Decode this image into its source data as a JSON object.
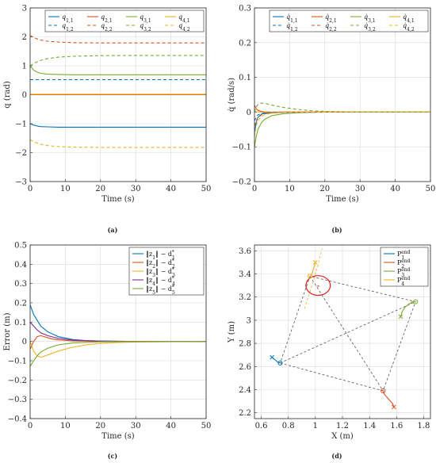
{
  "chart_data": [
    {
      "panel": "(a)",
      "type": "line",
      "xlabel": "Time (s)",
      "ylabel": "q (rad)",
      "xlim": [
        0,
        50
      ],
      "ylim": [
        -3,
        3
      ],
      "xticks": [
        0,
        10,
        20,
        30,
        40,
        50
      ],
      "yticks": [
        -3,
        -2,
        -1,
        0,
        1,
        2,
        3
      ],
      "grid": true,
      "legend_position": "top-right",
      "legend_columns": 4,
      "series": [
        {
          "name": "q1,1",
          "color": "#0072BD",
          "style": "solid",
          "x": [
            0,
            1,
            2,
            3,
            5,
            8,
            12,
            20,
            30,
            50
          ],
          "values": [
            -1.0,
            -1.05,
            -1.08,
            -1.1,
            -1.11,
            -1.12,
            -1.12,
            -1.12,
            -1.12,
            -1.12
          ]
        },
        {
          "name": "q2,1",
          "color": "#D95319",
          "style": "solid",
          "x": [
            0,
            2,
            5,
            10,
            50
          ],
          "values": [
            0.0,
            0.0,
            0.0,
            0.0,
            0.0
          ]
        },
        {
          "name": "q3,1",
          "color": "#77AC30",
          "style": "solid",
          "x": [
            0,
            1,
            2,
            3,
            5,
            8,
            12,
            20,
            30,
            50
          ],
          "values": [
            1.0,
            0.85,
            0.78,
            0.74,
            0.71,
            0.7,
            0.69,
            0.69,
            0.69,
            0.69
          ]
        },
        {
          "name": "q4,1",
          "color": "#EDB120",
          "style": "solid",
          "x": [
            0,
            2,
            5,
            10,
            50
          ],
          "values": [
            0.02,
            0.02,
            0.02,
            0.02,
            0.02
          ]
        },
        {
          "name": "q1,2",
          "color": "#0072BD",
          "style": "dashed",
          "x": [
            0,
            10,
            20,
            50
          ],
          "values": [
            0.52,
            0.52,
            0.52,
            0.52
          ]
        },
        {
          "name": "q2,2",
          "color": "#D95319",
          "style": "dashed",
          "x": [
            0,
            1,
            2,
            3,
            5,
            8,
            12,
            20,
            30,
            50
          ],
          "values": [
            2.05,
            1.98,
            1.93,
            1.89,
            1.85,
            1.82,
            1.8,
            1.79,
            1.79,
            1.79
          ]
        },
        {
          "name": "q3,2",
          "color": "#77AC30",
          "style": "dashed",
          "x": [
            0,
            1,
            2,
            3,
            5,
            8,
            12,
            20,
            30,
            50
          ],
          "values": [
            1.0,
            1.08,
            1.14,
            1.19,
            1.25,
            1.3,
            1.33,
            1.35,
            1.36,
            1.36
          ]
        },
        {
          "name": "q4,2",
          "color": "#EDB120",
          "style": "dashed",
          "x": [
            0,
            1,
            2,
            3,
            5,
            8,
            12,
            20,
            30,
            50
          ],
          "values": [
            -1.55,
            -1.62,
            -1.67,
            -1.71,
            -1.76,
            -1.79,
            -1.81,
            -1.82,
            -1.82,
            -1.82
          ]
        }
      ]
    },
    {
      "panel": "(b)",
      "type": "line",
      "xlabel": "Time (s)",
      "ylabel": "q̇ (rad/s)",
      "xlim": [
        0,
        50
      ],
      "ylim": [
        -0.2,
        0.3
      ],
      "xticks": [
        0,
        10,
        20,
        30,
        40,
        50
      ],
      "yticks": [
        -0.2,
        -0.1,
        0,
        0.1,
        0.2,
        0.3
      ],
      "grid": true,
      "legend_position": "top-right",
      "legend_columns": 4,
      "series": [
        {
          "name": "q̇1,1",
          "color": "#0072BD",
          "style": "solid",
          "x": [
            0,
            0.5,
            1,
            2,
            3,
            5,
            8,
            12,
            20,
            50
          ],
          "values": [
            -0.06,
            -0.03,
            -0.015,
            -0.006,
            -0.003,
            -0.001,
            0,
            0,
            0,
            0
          ]
        },
        {
          "name": "q̇2,1",
          "color": "#D95319",
          "style": "solid",
          "x": [
            0,
            0.5,
            1,
            2,
            3,
            5,
            8,
            12,
            20,
            50
          ],
          "values": [
            0.02,
            0.01,
            0.005,
            0.002,
            0.001,
            0,
            0,
            0,
            0,
            0
          ]
        },
        {
          "name": "q̇3,1",
          "color": "#77AC30",
          "style": "solid",
          "x": [
            0,
            0.5,
            1,
            2,
            3,
            5,
            8,
            12,
            20,
            50
          ],
          "values": [
            -0.1,
            -0.07,
            -0.05,
            -0.03,
            -0.02,
            -0.01,
            -0.005,
            -0.002,
            0,
            0
          ]
        },
        {
          "name": "q̇4,1",
          "color": "#EDB120",
          "style": "solid",
          "x": [
            0,
            1,
            2,
            50
          ],
          "values": [
            0.002,
            0.001,
            0,
            0
          ]
        },
        {
          "name": "q̇1,2",
          "color": "#0072BD",
          "style": "dashed",
          "x": [
            0,
            0.5,
            1,
            2,
            3,
            5,
            8,
            12,
            20,
            50
          ],
          "values": [
            -0.025,
            -0.015,
            -0.008,
            -0.004,
            -0.002,
            -0.001,
            0,
            0,
            0,
            0
          ]
        },
        {
          "name": "q̇2,2",
          "color": "#D95319",
          "style": "dashed",
          "x": [
            0,
            0.5,
            1,
            2,
            3,
            5,
            8,
            12,
            20,
            50
          ],
          "values": [
            -0.04,
            -0.025,
            -0.015,
            -0.008,
            -0.005,
            -0.002,
            -0.001,
            0,
            0,
            0
          ]
        },
        {
          "name": "q̇3,2",
          "color": "#77AC30",
          "style": "dashed",
          "x": [
            0,
            0.5,
            1,
            2,
            3,
            5,
            8,
            12,
            16,
            20,
            30,
            50
          ],
          "values": [
            0.0,
            0.015,
            0.022,
            0.026,
            0.025,
            0.02,
            0.014,
            0.008,
            0.004,
            0.002,
            0,
            0
          ]
        },
        {
          "name": "q̇4,2",
          "color": "#EDB120",
          "style": "dashed",
          "x": [
            0,
            0.5,
            1,
            2,
            3,
            5,
            8,
            12,
            20,
            50
          ],
          "values": [
            -0.07,
            -0.04,
            -0.025,
            -0.012,
            -0.007,
            -0.003,
            -0.001,
            0,
            0,
            0
          ]
        }
      ]
    },
    {
      "panel": "(c)",
      "type": "line",
      "xlabel": "Time (s)",
      "ylabel": "Error (m)",
      "xlim": [
        0,
        50
      ],
      "ylim": [
        -0.4,
        0.5
      ],
      "xticks": [
        0,
        10,
        20,
        30,
        40,
        50
      ],
      "yticks": [
        -0.4,
        -0.3,
        -0.2,
        -0.1,
        0,
        0.1,
        0.2,
        0.3,
        0.4,
        0.5
      ],
      "grid": true,
      "legend_position": "top-right",
      "legend_columns": 1,
      "series": [
        {
          "name": "‖z1‖ − d1*",
          "color": "#0072BD",
          "style": "solid",
          "x": [
            0,
            1,
            2,
            3,
            5,
            8,
            12,
            16,
            20,
            30,
            50
          ],
          "values": [
            0.19,
            0.14,
            0.11,
            0.08,
            0.05,
            0.025,
            0.01,
            0.004,
            0.002,
            0,
            0
          ]
        },
        {
          "name": "‖z2‖ − d2*",
          "color": "#D95319",
          "style": "solid",
          "x": [
            0,
            1,
            2,
            3,
            4,
            6,
            8,
            12,
            20,
            50
          ],
          "values": [
            -0.04,
            0.0,
            0.025,
            0.03,
            0.025,
            0.014,
            0.008,
            0.003,
            0,
            0
          ]
        },
        {
          "name": "‖z3‖ − d3*",
          "color": "#EDB120",
          "style": "solid",
          "x": [
            0,
            1,
            2,
            3,
            5,
            8,
            12,
            16,
            20,
            25,
            30,
            40,
            50
          ],
          "values": [
            0.0,
            -0.05,
            -0.075,
            -0.082,
            -0.07,
            -0.05,
            -0.03,
            -0.018,
            -0.01,
            -0.005,
            -0.003,
            -0.001,
            0
          ]
        },
        {
          "name": "‖z4‖ − d4*",
          "color": "#7E2F8E",
          "style": "solid",
          "x": [
            0,
            1,
            2,
            3,
            5,
            8,
            12,
            20,
            30,
            50
          ],
          "values": [
            0.1,
            0.08,
            0.06,
            0.045,
            0.03,
            0.016,
            0.007,
            0.002,
            0,
            0
          ]
        },
        {
          "name": "‖z5‖ − d5*",
          "color": "#77AC30",
          "style": "solid",
          "x": [
            0,
            1,
            2,
            3,
            5,
            8,
            12,
            20,
            30,
            50
          ],
          "values": [
            -0.13,
            -0.1,
            -0.075,
            -0.055,
            -0.035,
            -0.018,
            -0.008,
            -0.002,
            0,
            0
          ]
        }
      ]
    },
    {
      "panel": "(d)",
      "type": "line",
      "xlabel": "X (m)",
      "ylabel": "Y (m)",
      "xlim": [
        0.55,
        1.85
      ],
      "ylim": [
        2.15,
        3.65
      ],
      "xticks": [
        0.6,
        0.8,
        1,
        1.2,
        1.4,
        1.6,
        1.8
      ],
      "yticks": [
        2.2,
        2.4,
        2.6,
        2.8,
        3,
        3.2,
        3.4,
        3.6
      ],
      "grid": true,
      "legend_position": "top-right",
      "legend_columns": 1,
      "series": [
        {
          "name": "P1end",
          "color": "#0072BD",
          "style": "solid",
          "x": [
            0.68,
            0.7,
            0.72,
            0.74
          ],
          "values": [
            2.68,
            2.66,
            2.64,
            2.63
          ]
        },
        {
          "name": "P2end",
          "color": "#D95319",
          "style": "solid",
          "x": [
            1.58,
            1.57,
            1.54,
            1.51,
            1.5
          ],
          "values": [
            2.25,
            2.28,
            2.32,
            2.36,
            2.39
          ]
        },
        {
          "name": "P3end",
          "color": "#77AC30",
          "style": "solid",
          "x": [
            1.63,
            1.64,
            1.66,
            1.69,
            1.72,
            1.74
          ],
          "values": [
            3.03,
            3.07,
            3.11,
            3.14,
            3.16,
            3.16
          ]
        },
        {
          "name": "P4end",
          "color": "#EDB120",
          "style": "solid",
          "x": [
            1.0,
            0.99,
            0.98,
            0.97,
            0.96
          ],
          "values": [
            3.5,
            3.46,
            3.42,
            3.39,
            3.38
          ]
        }
      ],
      "extra": {
        "start_markers": [
          {
            "series": "P1end",
            "color": "#0072BD",
            "x": 0.68,
            "y": 2.68,
            "marker": "x"
          },
          {
            "series": "P2end",
            "color": "#D95319",
            "x": 1.58,
            "y": 2.25,
            "marker": "x"
          },
          {
            "series": "P3end",
            "color": "#77AC30",
            "x": 1.63,
            "y": 3.03,
            "marker": "x"
          },
          {
            "series": "P4end",
            "color": "#EDB120",
            "x": 1.0,
            "y": 3.5,
            "marker": "x"
          }
        ],
        "end_markers": [
          {
            "series": "P1end",
            "color": "#0072BD",
            "x": 0.74,
            "y": 2.63,
            "marker": "o"
          },
          {
            "series": "P2end",
            "color": "#D95319",
            "x": 1.5,
            "y": 2.39,
            "marker": "o"
          },
          {
            "series": "P3end",
            "color": "#77AC30",
            "x": 1.74,
            "y": 3.16,
            "marker": "o"
          },
          {
            "series": "P4end",
            "color": "#EDB120",
            "x": 0.96,
            "y": 3.38,
            "marker": "o"
          }
        ],
        "polygon": {
          "color": "#555555",
          "style": "dashed",
          "points": [
            [
              0.74,
              2.63
            ],
            [
              1.5,
              2.39
            ],
            [
              1.74,
              3.16
            ],
            [
              0.96,
              3.38
            ],
            [
              0.74,
              2.63
            ]
          ]
        },
        "extra_dashed_lines": [
          {
            "color": "#555555",
            "points": [
              [
                0.74,
                2.63
              ],
              [
                1.74,
                3.16
              ]
            ]
          },
          {
            "color": "#555555",
            "points": [
              [
                0.96,
                3.38
              ],
              [
                1.5,
                2.39
              ]
            ]
          },
          {
            "color": "#EDB120",
            "points": [
              [
                0.92,
                3.1
              ],
              [
                0.98,
                3.32
              ],
              [
                1.02,
                3.48
              ],
              [
                1.05,
                3.62
              ]
            ]
          }
        ],
        "obstacle_circle": {
          "color": "#E41A1C",
          "center": [
            1.02,
            3.3
          ],
          "radius_x": 0.09,
          "radius_y": 0.085
        },
        "obstacle_center": {
          "color": "#E41A1C",
          "x": 1.02,
          "y": 3.3
        }
      }
    }
  ]
}
